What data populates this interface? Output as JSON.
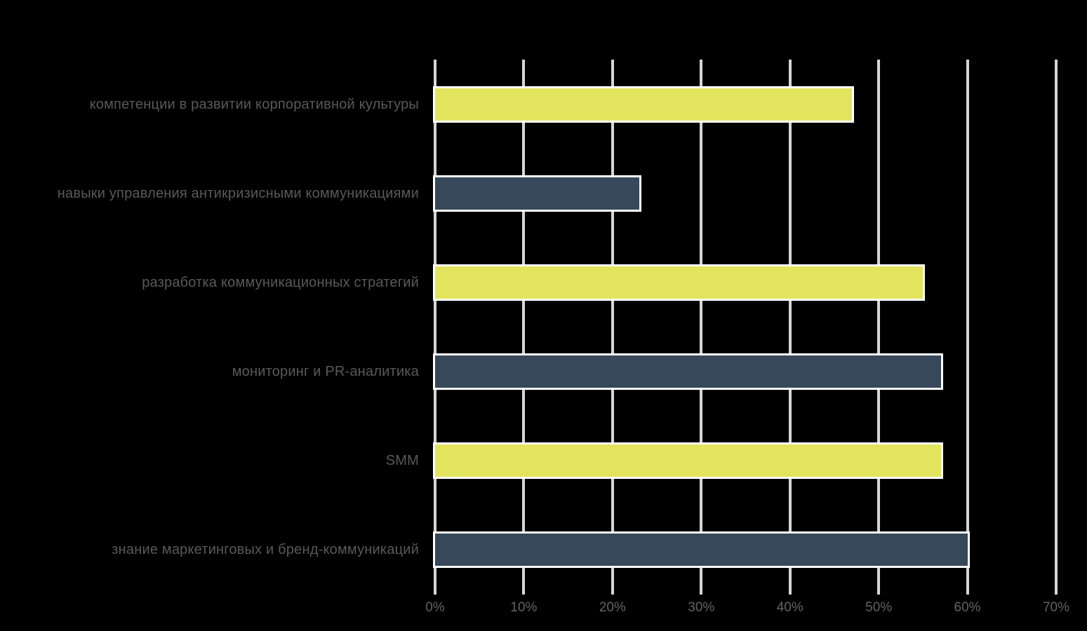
{
  "chart_data": {
    "type": "bar",
    "orientation": "horizontal",
    "title": "",
    "xlabel": "",
    "ylabel": "",
    "categories": [
      "компетенции в развитии корпоративной культуры",
      "навыки управления антикризисными коммуникациями",
      "разработка коммуникационных стратегий",
      "мониторинг и PR-аналитика",
      "SMM",
      "знание маркетинговых и бренд-коммуникаций"
    ],
    "values": [
      47,
      23,
      55,
      57,
      57,
      60
    ],
    "value_unit": "%",
    "xlim": [
      0,
      70
    ],
    "x_ticks": [
      "0%",
      "10%",
      "20%",
      "30%",
      "40%",
      "50%",
      "60%",
      "70%"
    ],
    "x_tick_values": [
      0,
      10,
      20,
      30,
      40,
      50,
      60,
      70
    ],
    "grid": true,
    "legend": false,
    "bar_colors": [
      "#e2e45e",
      "#36485a",
      "#e2e45e",
      "#36485a",
      "#e2e45e",
      "#36485a"
    ],
    "colors": {
      "bar_yellow": "#e2e45e",
      "bar_dark_slate": "#36485a",
      "bar_border": "#ffffff",
      "gridline": "#d6d6d6",
      "category_label_text": "#595959",
      "tick_label_text": "#636363",
      "background": "#000000"
    }
  }
}
